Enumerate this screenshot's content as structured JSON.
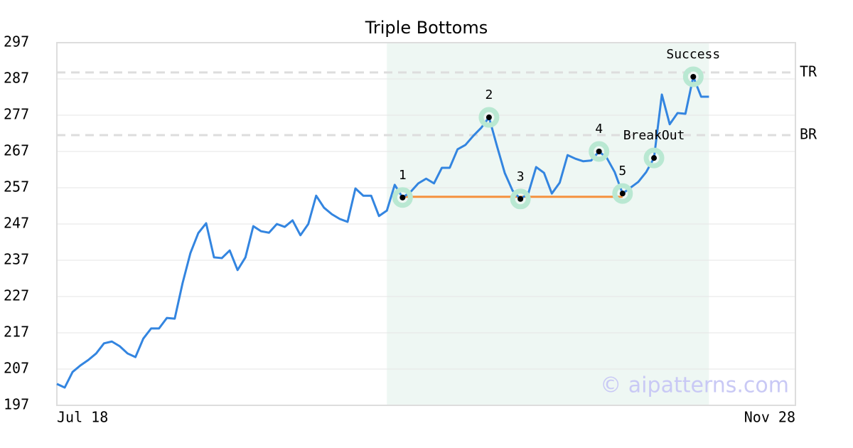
{
  "chart_data": {
    "type": "line",
    "title": "Triple Bottoms",
    "values": [
      202.9,
      201.9,
      206.2,
      208.0,
      209.5,
      211.3,
      214.1,
      214.6,
      213.3,
      211.3,
      210.3,
      215.4,
      218.2,
      218.2,
      221.1,
      220.9,
      230.7,
      239.0,
      244.5,
      247.2,
      237.8,
      237.6,
      239.7,
      234.3,
      237.8,
      246.4,
      245.0,
      244.6,
      247.0,
      246.2,
      248.0,
      243.9,
      247.0,
      254.8,
      251.5,
      249.7,
      248.4,
      247.6,
      256.8,
      254.8,
      254.8,
      249.2,
      250.7,
      257.8,
      254.3,
      255.8,
      258.2,
      259.5,
      258.2,
      262.5,
      262.5,
      267.6,
      268.8,
      271.3,
      273.5,
      276.4,
      268.6,
      261.1,
      256.2,
      253.9,
      255.4,
      262.7,
      261.1,
      255.4,
      258.4,
      266.0,
      265.0,
      264.3,
      264.5,
      267.0,
      265.2,
      261.3,
      255.4,
      257.0,
      258.6,
      261.3,
      265.2,
      282.7,
      274.5,
      277.6,
      277.4,
      287.6,
      282.1,
      282.1
    ],
    "color": "#3385e0",
    "xlim": [
      0,
      94
    ],
    "xticks": [
      {
        "value": 0,
        "label": "Jul 18"
      },
      {
        "value": 94,
        "label": "Nov 28"
      }
    ],
    "ylim": [
      197,
      297
    ],
    "yticks": [
      197,
      207,
      217,
      227,
      237,
      247,
      257,
      267,
      277,
      287,
      297
    ],
    "grid": true,
    "shaded_range": [
      42,
      83
    ],
    "levels": [
      {
        "name": "TR",
        "value": 288.8
      },
      {
        "name": "BR",
        "value": 271.5
      }
    ],
    "support": {
      "from": 44,
      "to": 72,
      "value": 254.5,
      "color": "#f5923e"
    },
    "annotations": [
      {
        "index": 44,
        "label": "1"
      },
      {
        "index": 55,
        "label": "2"
      },
      {
        "index": 59,
        "label": "3"
      },
      {
        "index": 69,
        "label": "4"
      },
      {
        "index": 72,
        "label": "5"
      },
      {
        "index": 76,
        "label": "BreakOut"
      },
      {
        "index": 81,
        "label": "Success"
      }
    ],
    "watermark": "© aipatterns.com"
  }
}
